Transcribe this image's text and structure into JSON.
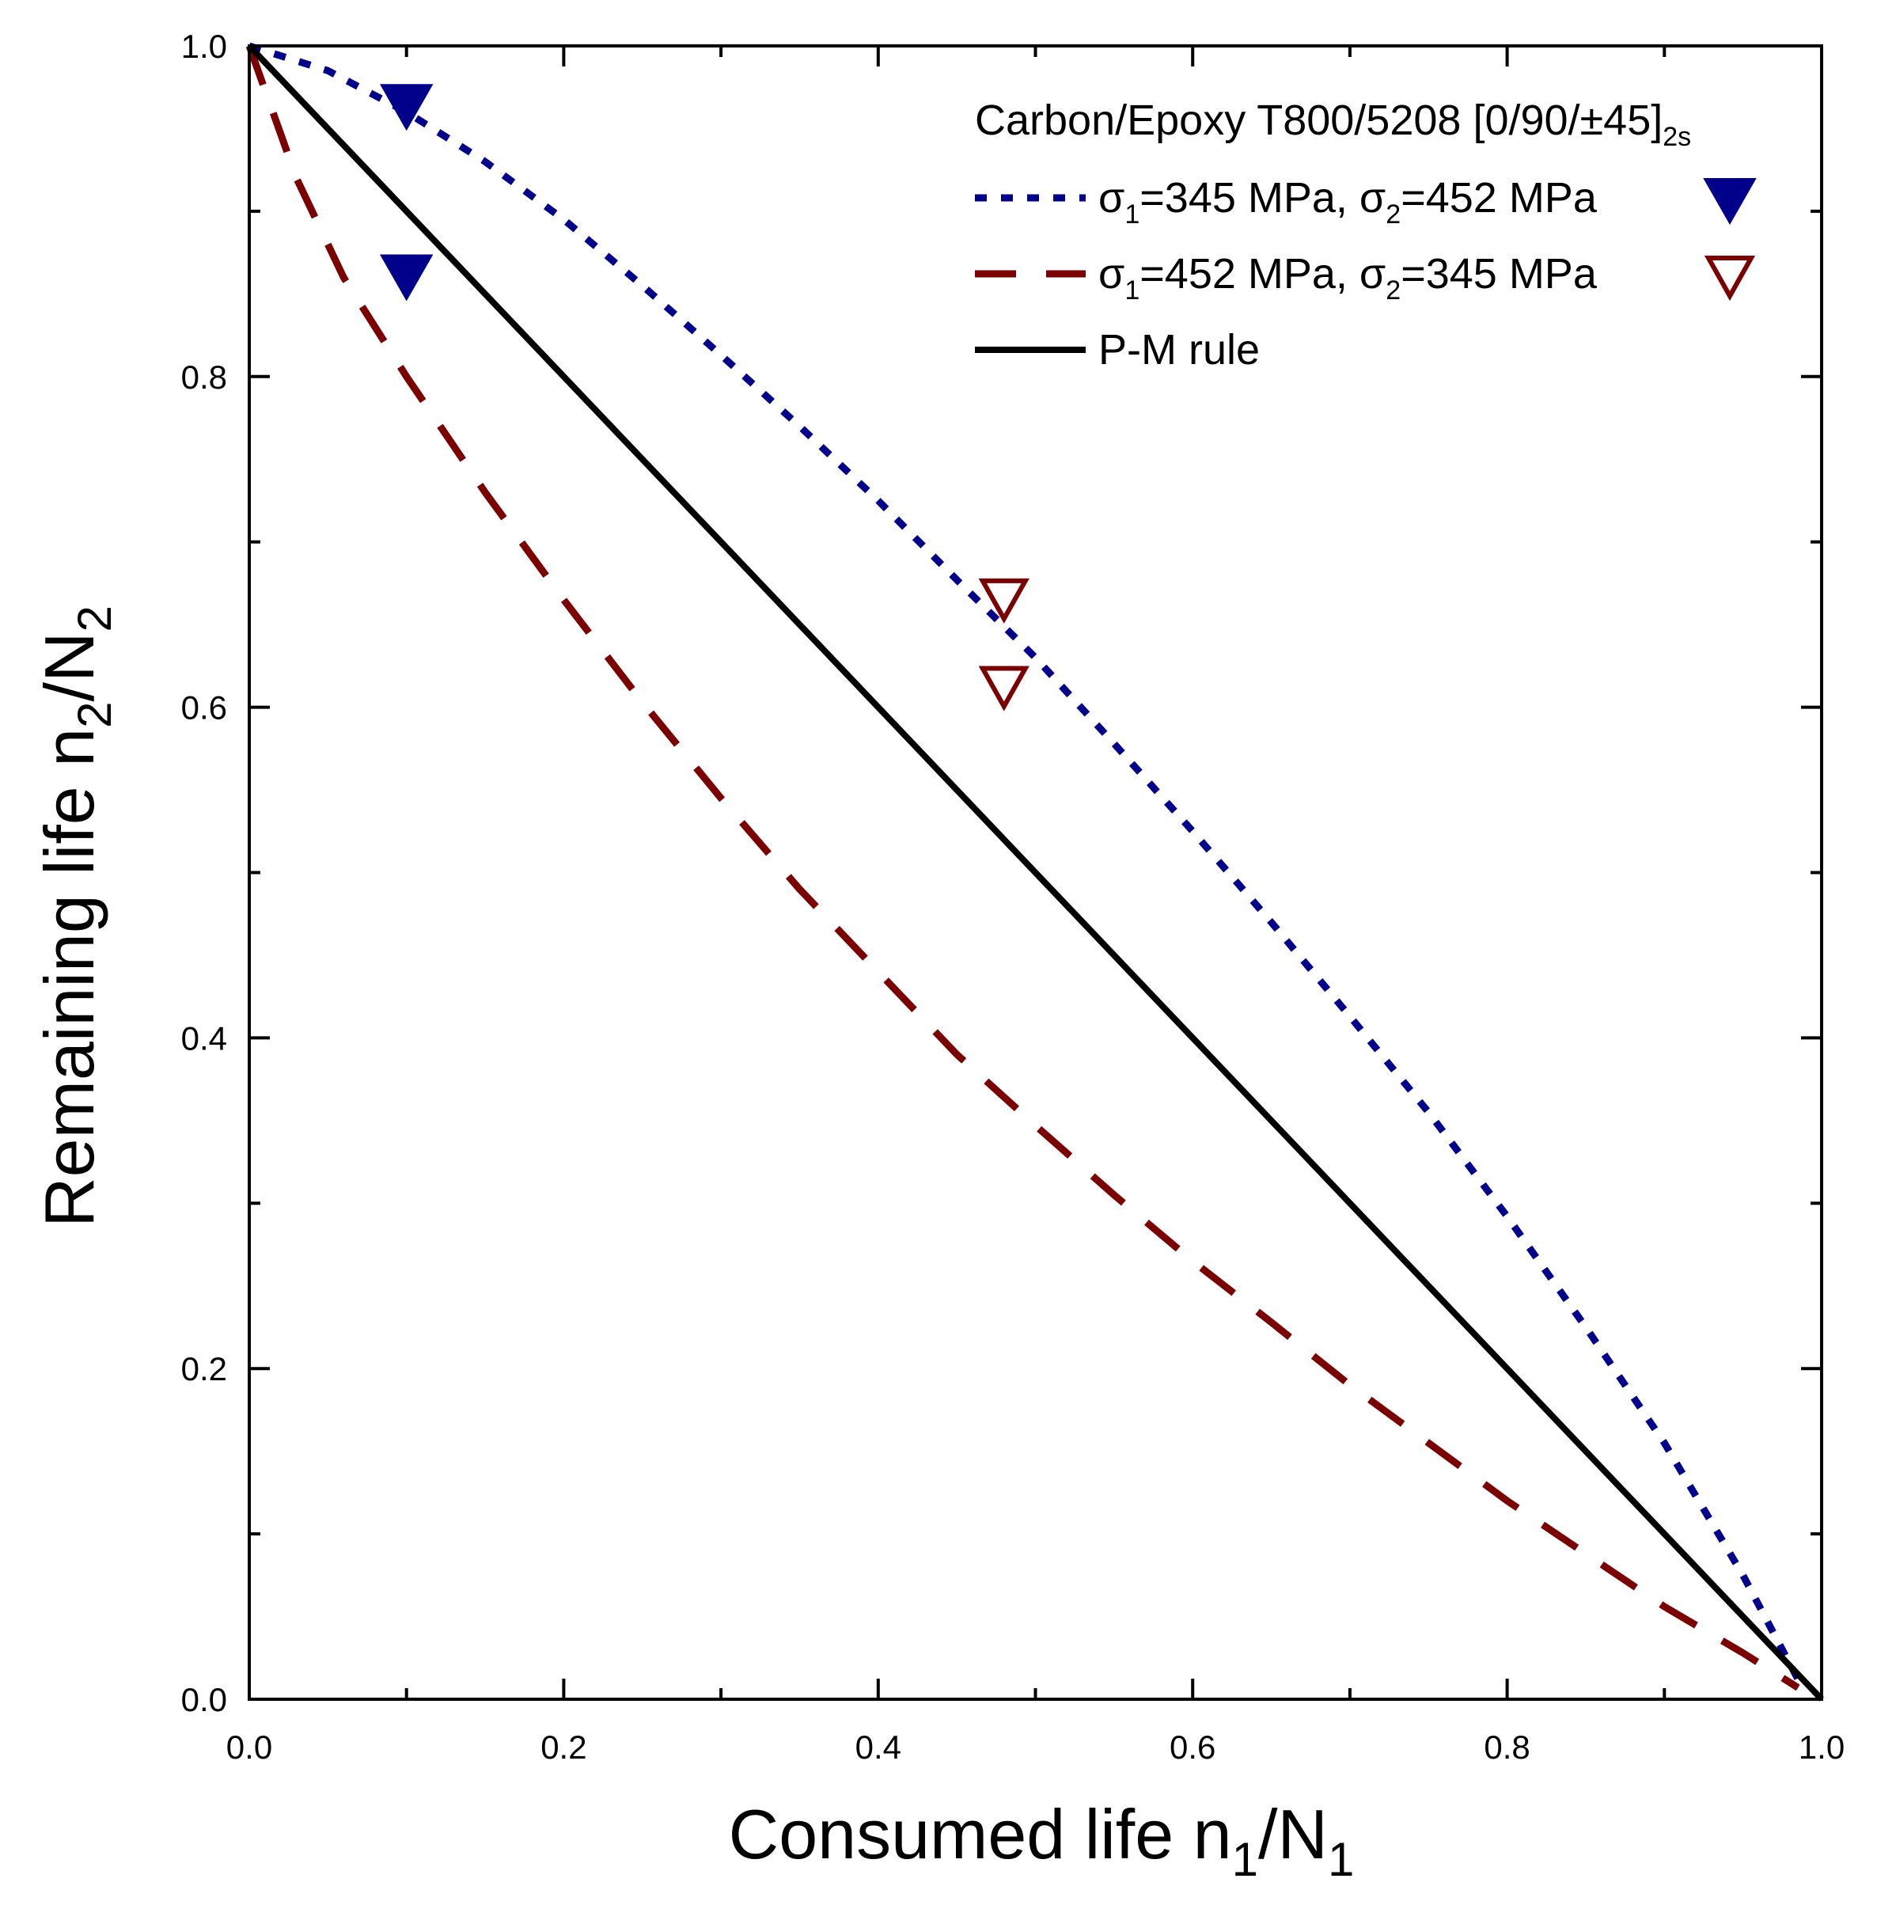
{
  "chart_data": {
    "type": "line",
    "title": "Carbon/Epoxy T800/5208 [0/90/±45]2s",
    "title_parts": {
      "main": "Carbon/Epoxy T800/5208 [0/90/±45]",
      "sub": "2s"
    },
    "xlabel": "Consumed life n1/N1",
    "xlabel_parts": {
      "a": "Consumed life n",
      "b": "1",
      "c": "/N",
      "d": "1"
    },
    "ylabel": "Remaining life n2/N2",
    "ylabel_parts": {
      "a": "Remaining life n",
      "b": "2",
      "c": "/N",
      "d": "2"
    },
    "xlim": [
      0.0,
      1.0
    ],
    "ylim": [
      0.0,
      1.0
    ],
    "xticks": [
      "0.0",
      "0.2",
      "0.4",
      "0.6",
      "0.8",
      "1.0"
    ],
    "yticks": [
      "0.0",
      "0.2",
      "0.4",
      "0.6",
      "0.8",
      "1.0"
    ],
    "grid": false,
    "legend_position": "top-right",
    "series": [
      {
        "name": "σ1=345 MPa, σ2=452 MPa",
        "legend_parts": {
          "s1": "σ",
          "i1": "1",
          "t1": "=345 MPa, σ",
          "i2": "2",
          "t2": "=452 MPa"
        },
        "style": "dotted",
        "color": "#00008b",
        "x": [
          0.0,
          0.05,
          0.1,
          0.15,
          0.2,
          0.25,
          0.3,
          0.35,
          0.4,
          0.45,
          0.5,
          0.55,
          0.6,
          0.65,
          0.7,
          0.75,
          0.8,
          0.85,
          0.9,
          0.95,
          0.985
        ],
        "y": [
          1.0,
          0.985,
          0.96,
          0.93,
          0.895,
          0.855,
          0.813,
          0.77,
          0.725,
          0.677,
          0.63,
          0.578,
          0.525,
          0.47,
          0.413,
          0.355,
          0.292,
          0.225,
          0.155,
          0.075,
          0.012
        ]
      },
      {
        "name": "σ1=452 MPa, σ2=345 MPa",
        "legend_parts": {
          "s1": "σ",
          "i1": "1",
          "t1": "=452 MPa, σ",
          "i2": "2",
          "t2": "=345 MPa"
        },
        "style": "dashed",
        "color": "#7b0000",
        "x": [
          0.0,
          0.03,
          0.06,
          0.1,
          0.15,
          0.2,
          0.25,
          0.3,
          0.35,
          0.4,
          0.45,
          0.5,
          0.55,
          0.6,
          0.65,
          0.7,
          0.75,
          0.8,
          0.85,
          0.9,
          0.95,
          0.985
        ],
        "y": [
          1.0,
          0.92,
          0.86,
          0.8,
          0.73,
          0.665,
          0.603,
          0.545,
          0.49,
          0.44,
          0.39,
          0.347,
          0.305,
          0.265,
          0.228,
          0.19,
          0.155,
          0.12,
          0.088,
          0.056,
          0.028,
          0.007
        ]
      },
      {
        "name": "P-M rule",
        "style": "solid",
        "color": "#000000",
        "x": [
          0.0,
          1.0
        ],
        "y": [
          1.0,
          0.0
        ]
      }
    ],
    "markers": [
      {
        "name": "σ1=345 MPa, σ2=452 MPa",
        "symbol": "triangle-down-filled",
        "color": "#00008b",
        "points": [
          {
            "x": 0.1,
            "y": 0.963
          },
          {
            "x": 0.1,
            "y": 0.86
          }
        ]
      },
      {
        "name": "σ1=452 MPa, σ2=345 MPa",
        "symbol": "triangle-down-open",
        "color": "#7b0000",
        "points": [
          {
            "x": 0.48,
            "y": 0.665
          },
          {
            "x": 0.48,
            "y": 0.612
          }
        ]
      }
    ]
  }
}
